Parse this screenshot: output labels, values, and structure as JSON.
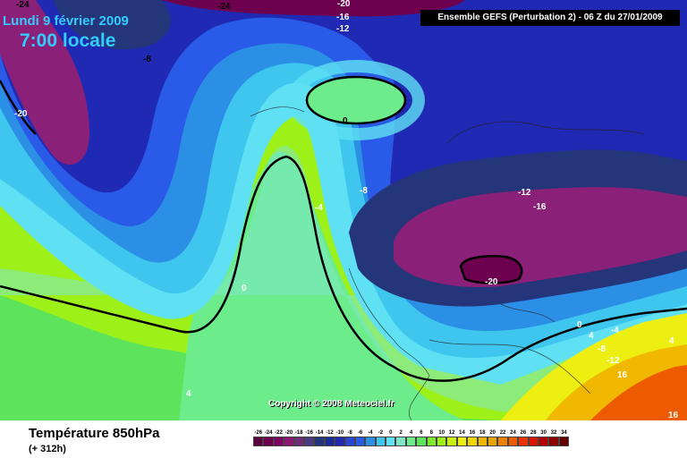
{
  "header": {
    "date": "Lundi 9 février 2009",
    "time": "7:00 locale",
    "model_run": "Ensemble GEFS (Perturbation 2)  - 06 Z du 27/01/2009"
  },
  "map": {
    "copyright": "Copyright © 2008 Meteociel.fr",
    "contour_labels": [
      "-24",
      "-24",
      "-20",
      "-16",
      "-12",
      "-8",
      "-20",
      "0",
      "-8",
      "-4",
      "-12",
      "-16",
      "0",
      "-20",
      "4",
      "0",
      "-4",
      "4",
      "-8",
      "-12",
      "16",
      "4",
      "16"
    ],
    "colors": {
      "cold_core": "#6e0050",
      "very_cold": "#8a2077",
      "navy": "#24357a",
      "deep_blue": "#1f29b3",
      "blue": "#2a5ae8",
      "mid_blue": "#2c8fe6",
      "light_blue": "#3fc6ef",
      "cyan": "#5fe1f3",
      "aqua": "#7fe7c8",
      "light_green": "#6cec8a",
      "green": "#5ee35c",
      "yellow_green": "#9ef019",
      "warm": "#e9a400",
      "hot": "#ee5a00"
    }
  },
  "legend": {
    "title": "Température 850hPa",
    "lead_time": "(+ 312h)",
    "scale": [
      {
        "label": "-26",
        "color": "#5a003f"
      },
      {
        "label": "-24",
        "color": "#6e0050"
      },
      {
        "label": "-22",
        "color": "#7e0063"
      },
      {
        "label": "-20",
        "color": "#8d1573"
      },
      {
        "label": "-18",
        "color": "#6f2a78"
      },
      {
        "label": "-16",
        "color": "#4a3a80"
      },
      {
        "label": "-14",
        "color": "#24357a"
      },
      {
        "label": "-12",
        "color": "#1a2c9a"
      },
      {
        "label": "-10",
        "color": "#1f29b3"
      },
      {
        "label": "-8",
        "color": "#2746d8"
      },
      {
        "label": "-6",
        "color": "#2a5ae8"
      },
      {
        "label": "-4",
        "color": "#2c8fe6"
      },
      {
        "label": "-2",
        "color": "#3fc6ef"
      },
      {
        "label": "0",
        "color": "#5fe1f3"
      },
      {
        "label": "2",
        "color": "#7fe7c8"
      },
      {
        "label": "4",
        "color": "#6cec8a"
      },
      {
        "label": "6",
        "color": "#5ee35c"
      },
      {
        "label": "8",
        "color": "#7fea2c"
      },
      {
        "label": "10",
        "color": "#9ef019"
      },
      {
        "label": "12",
        "color": "#c8f013"
      },
      {
        "label": "14",
        "color": "#ecef11"
      },
      {
        "label": "16",
        "color": "#f2d400"
      },
      {
        "label": "18",
        "color": "#f0b800"
      },
      {
        "label": "20",
        "color": "#e9a400"
      },
      {
        "label": "22",
        "color": "#ee8200"
      },
      {
        "label": "24",
        "color": "#ee5a00"
      },
      {
        "label": "26",
        "color": "#e83200"
      },
      {
        "label": "28",
        "color": "#d81400"
      },
      {
        "label": "30",
        "color": "#b40000"
      },
      {
        "label": "32",
        "color": "#8c0000"
      },
      {
        "label": "34",
        "color": "#640000"
      }
    ]
  }
}
